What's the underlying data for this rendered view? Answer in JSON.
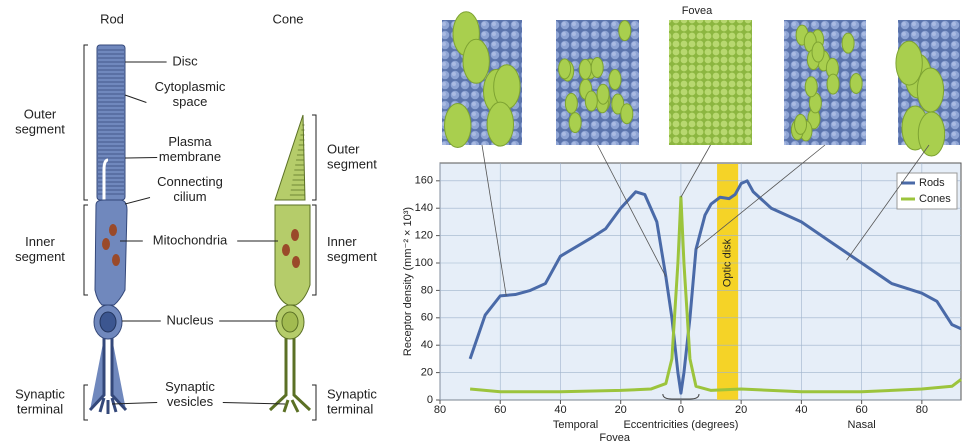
{
  "diagram": {
    "rod_title": "Rod",
    "cone_title": "Cone",
    "labels": [
      [
        "Disc"
      ],
      [
        "Cytoplasmic",
        "space"
      ],
      [
        "Plasma",
        "membrane"
      ],
      [
        "Connecting",
        "cilium"
      ],
      [
        "Mitochondria"
      ],
      [
        "Nucleus"
      ],
      [
        "Synaptic",
        "vesicles"
      ]
    ],
    "left_brackets": [
      [
        "Outer",
        "segment"
      ],
      [
        "Inner",
        "segment"
      ],
      [
        "Synaptic",
        "terminal"
      ]
    ],
    "right_brackets": [
      [
        "Outer",
        "segment"
      ],
      [
        "Inner",
        "segment"
      ],
      [
        "Synaptic",
        "terminal"
      ]
    ]
  },
  "chart_data": {
    "type": "line",
    "top_label": "Fovea",
    "bottom_label": "Fovea",
    "xlabel": "Eccentricities (degrees)",
    "ylabel": "Receptor density (mm⁻² × 10³)",
    "side_labels": [
      "Temporal",
      "Nasal"
    ],
    "optic_disk": {
      "label": "Optic disk",
      "range": [
        12,
        19
      ],
      "color": "#f5d327"
    },
    "xlim": [
      -80,
      93
    ],
    "ylim": [
      0,
      173
    ],
    "xticks": [
      {
        "value": -80,
        "label": "80"
      },
      {
        "value": -60,
        "label": "60"
      },
      {
        "value": -40,
        "label": "40"
      },
      {
        "value": -20,
        "label": "20"
      },
      0,
      20,
      40,
      60,
      80
    ],
    "yticks": [
      0,
      20,
      40,
      60,
      80,
      100,
      120,
      140,
      160
    ],
    "grid": true,
    "legend": "upper right",
    "series": [
      {
        "name": "Rods",
        "color": "#4a6aa8",
        "x": [
          -70,
          -65,
          -60,
          -55,
          -50,
          -45,
          -40,
          -30,
          -25,
          -20,
          -15,
          -12,
          -8,
          -5,
          -3,
          -1,
          0,
          1,
          3,
          5,
          8,
          10,
          13,
          16,
          18,
          20,
          22,
          24,
          30,
          40,
          50,
          60,
          70,
          80,
          85,
          90,
          93
        ],
        "values": [
          30,
          62,
          76,
          77,
          80,
          85,
          105,
          118,
          125,
          140,
          152,
          150,
          130,
          90,
          60,
          20,
          5,
          20,
          60,
          110,
          135,
          143,
          148,
          147,
          150,
          158,
          160,
          152,
          140,
          130,
          115,
          100,
          85,
          78,
          72,
          55,
          52
        ]
      },
      {
        "name": "Cones",
        "color": "#9cc43c",
        "x": [
          -70,
          -60,
          -40,
          -20,
          -10,
          -5,
          -3,
          -1,
          0,
          1,
          3,
          5,
          10,
          20,
          40,
          60,
          80,
          90,
          93
        ],
        "values": [
          8,
          6,
          6,
          7,
          8,
          12,
          30,
          100,
          148,
          100,
          30,
          10,
          7,
          8,
          6,
          6,
          8,
          10,
          15
        ]
      }
    ]
  }
}
